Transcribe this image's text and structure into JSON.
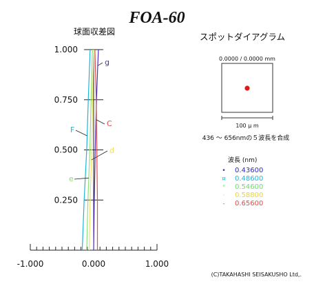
{
  "title": "FOA-60",
  "copyright": "(C)TAKAHASHI SEISAKUSHO Ltd,.",
  "spherical": {
    "label": "球面収差図",
    "chart_data": {
      "type": "line",
      "xlim": [
        -1.0,
        1.0
      ],
      "ylim": [
        0.0,
        1.0
      ],
      "x_ticks": [
        "-1.000",
        "0.000",
        "1.000"
      ],
      "y_ticks": [
        "0.250",
        "0.500",
        "0.750",
        "1.000"
      ],
      "series": [
        {
          "name": "g",
          "color": "#4b2fb8",
          "points": [
            [
              0.0,
              0.0
            ],
            [
              0.01,
              0.25
            ],
            [
              0.025,
              0.5
            ],
            [
              0.045,
              0.75
            ],
            [
              0.06,
              0.88
            ],
            [
              0.075,
              1.0
            ]
          ]
        },
        {
          "name": "F",
          "color": "#1fb4d6",
          "points": [
            [
              -0.18,
              0.0
            ],
            [
              -0.15,
              0.25
            ],
            [
              -0.11,
              0.5
            ],
            [
              -0.085,
              0.75
            ],
            [
              -0.07,
              0.88
            ],
            [
              -0.055,
              1.0
            ]
          ]
        },
        {
          "name": "e",
          "color": "#8ee07a",
          "points": [
            [
              -0.11,
              0.0
            ],
            [
              -0.09,
              0.25
            ],
            [
              -0.06,
              0.5
            ],
            [
              -0.04,
              0.75
            ],
            [
              -0.03,
              0.88
            ],
            [
              -0.02,
              1.0
            ]
          ]
        },
        {
          "name": "d",
          "color": "#f0e068",
          "points": [
            [
              -0.07,
              0.0
            ],
            [
              -0.055,
              0.25
            ],
            [
              -0.03,
              0.5
            ],
            [
              -0.015,
              0.75
            ],
            [
              -0.01,
              0.88
            ],
            [
              0.0,
              1.0
            ]
          ]
        },
        {
          "name": "C",
          "color": "#e04b4b",
          "points": [
            [
              0.06,
              0.0
            ],
            [
              0.06,
              0.25
            ],
            [
              0.05,
              0.5
            ],
            [
              0.04,
              0.75
            ],
            [
              0.03,
              0.88
            ],
            [
              0.02,
              1.0
            ]
          ]
        }
      ]
    }
  },
  "spot": {
    "label": "スポットダイアグラム",
    "coords": "0.0000 / 0.0000 mm",
    "scale_label": "100 μ m",
    "note": "436 ～ 656nmの５波長を合成",
    "dot_color": "#e01818"
  },
  "legend": {
    "title": "波長 (nm)",
    "items": [
      {
        "marker": "•",
        "value": "0.43600",
        "color": "#2a2ac0"
      },
      {
        "marker": "¤",
        "value": "0.48600",
        "color": "#1fb4d6"
      },
      {
        "marker": "ˣ",
        "value": "0.54600",
        "color": "#6fd86f"
      },
      {
        "marker": "·",
        "value": "0.58800",
        "color": "#e8d23a"
      },
      {
        "marker": "-",
        "value": "0.65600",
        "color": "#e04b4b"
      }
    ]
  }
}
